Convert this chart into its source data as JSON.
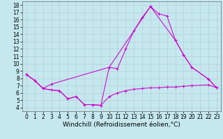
{
  "xlabel": "Windchill (Refroidissement éolien,°C)",
  "background_color": "#c5e8ef",
  "line_color": "#cc00cc",
  "grid_color": "#b0c8d0",
  "xlim": [
    -0.5,
    23.5
  ],
  "ylim": [
    3.5,
    18.5
  ],
  "yticks": [
    4,
    5,
    6,
    7,
    8,
    9,
    10,
    11,
    12,
    13,
    14,
    15,
    16,
    17,
    18
  ],
  "xticks": [
    0,
    1,
    2,
    3,
    4,
    5,
    6,
    7,
    8,
    9,
    10,
    11,
    12,
    13,
    14,
    15,
    16,
    17,
    18,
    19,
    20,
    21,
    22,
    23
  ],
  "series": [
    {
      "x": [
        0,
        1,
        2,
        3,
        4,
        5,
        6,
        7,
        8,
        9,
        10,
        11,
        12,
        13,
        14,
        15,
        16,
        17,
        18,
        19,
        20,
        22,
        23
      ],
      "y": [
        8.5,
        7.7,
        6.6,
        6.4,
        6.3,
        5.2,
        5.5,
        4.4,
        4.4,
        4.3,
        9.5,
        9.3,
        12.0,
        14.5,
        16.3,
        17.8,
        16.8,
        16.5,
        13.2,
        11.2,
        9.5,
        7.9,
        6.7
      ]
    },
    {
      "x": [
        0,
        1,
        2,
        3,
        4,
        5,
        6,
        7,
        8,
        9,
        10,
        11,
        12,
        13,
        14,
        15,
        16,
        17,
        18,
        19,
        20,
        22,
        23
      ],
      "y": [
        8.5,
        7.7,
        6.6,
        6.4,
        6.3,
        5.2,
        5.5,
        4.4,
        4.4,
        4.3,
        5.5,
        6.0,
        6.3,
        6.5,
        6.6,
        6.7,
        6.7,
        6.8,
        6.8,
        6.9,
        7.0,
        7.1,
        6.7
      ]
    },
    {
      "x": [
        0,
        1,
        2,
        3,
        10,
        15,
        18,
        19,
        20,
        22,
        23
      ],
      "y": [
        8.5,
        7.7,
        6.6,
        7.2,
        9.5,
        17.8,
        13.2,
        11.2,
        9.5,
        7.9,
        6.7
      ]
    }
  ],
  "tick_fontsize": 5.5,
  "label_fontsize": 6.5,
  "linewidth": 0.75,
  "markersize": 2.5
}
